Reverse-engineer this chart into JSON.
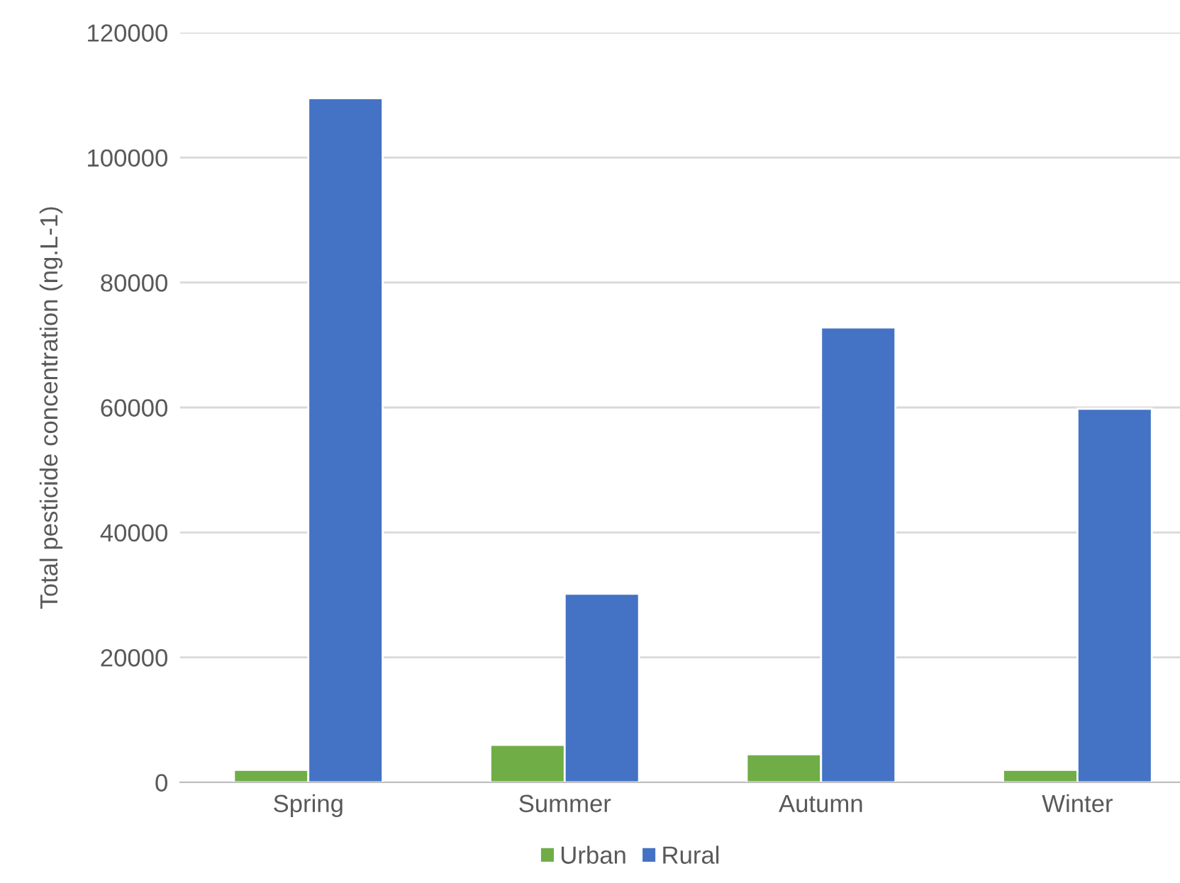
{
  "chart_data": {
    "type": "bar",
    "ylabel": "Total pesticide concentration (ng.L-1)",
    "categories": [
      "Spring",
      "Summer",
      "Autumn",
      "Winter"
    ],
    "series": [
      {
        "name": "Urban",
        "color": "#70ad47",
        "values": [
          2000,
          6000,
          4500,
          2000
        ]
      },
      {
        "name": "Rural",
        "color": "#4472c4",
        "values": [
          109500,
          30200,
          72800,
          59800
        ]
      }
    ],
    "ylim": [
      0,
      120000
    ],
    "yticks": [
      0,
      20000,
      40000,
      60000,
      80000,
      100000,
      120000
    ],
    "grid": "y",
    "legend": "bottom"
  }
}
